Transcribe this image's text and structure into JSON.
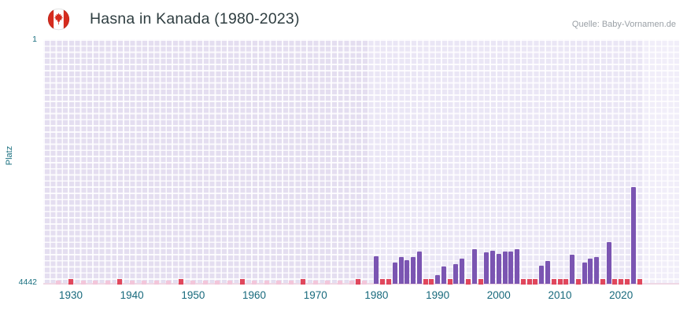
{
  "header": {
    "title": "Hasna in Kanada (1980-2023)",
    "source": "Quelle: Baby-Vornamen.de",
    "flag_icon": "canada-flag"
  },
  "chart_data": {
    "type": "bar",
    "title": "Hasna in Kanada (1980-2023)",
    "xlabel": "",
    "ylabel": "Platz",
    "grid": true,
    "legend": false,
    "y_axis": {
      "min": 1,
      "max": 4442,
      "top_label": "1",
      "bottom_label": "4442",
      "inverted": true,
      "note": "rank axis: 1 = best at top, 4442 at bottom; bars rise from bottom, taller bar = better rank"
    },
    "x_axis": {
      "domain": [
        1926,
        2030
      ],
      "ticks": [
        1930,
        1940,
        1950,
        1960,
        1970,
        1980,
        1990,
        2000,
        2010,
        2020
      ]
    },
    "regions": [
      {
        "name": "pre-data",
        "from": 1926,
        "to": 1979,
        "color": "#e4def0"
      },
      {
        "name": "data-era",
        "from": 1979,
        "to": 2024,
        "color": "#eae6f5"
      },
      {
        "name": "post-data",
        "from": 2024,
        "to": 2030,
        "color": "#f1eef9"
      }
    ],
    "series": [
      {
        "year": 1980,
        "rank": 3940
      },
      {
        "year": 1983,
        "rank": 4060
      },
      {
        "year": 1984,
        "rank": 3950
      },
      {
        "year": 1985,
        "rank": 4010
      },
      {
        "year": 1986,
        "rank": 3950
      },
      {
        "year": 1987,
        "rank": 3860
      },
      {
        "year": 1990,
        "rank": 4290
      },
      {
        "year": 1991,
        "rank": 4130
      },
      {
        "year": 1993,
        "rank": 4090
      },
      {
        "year": 1994,
        "rank": 3990
      },
      {
        "year": 1996,
        "rank": 3820
      },
      {
        "year": 1998,
        "rank": 3870
      },
      {
        "year": 1999,
        "rank": 3840
      },
      {
        "year": 2000,
        "rank": 3900
      },
      {
        "year": 2001,
        "rank": 3860
      },
      {
        "year": 2002,
        "rank": 3850
      },
      {
        "year": 2003,
        "rank": 3820
      },
      {
        "year": 2007,
        "rank": 4110
      },
      {
        "year": 2008,
        "rank": 4030
      },
      {
        "year": 2012,
        "rank": 3920
      },
      {
        "year": 2014,
        "rank": 4060
      },
      {
        "year": 2015,
        "rank": 3990
      },
      {
        "year": 2016,
        "rank": 3960
      },
      {
        "year": 2018,
        "rank": 3690
      },
      {
        "year": 2022,
        "rank": 2690
      }
    ],
    "unranked_marker_years": [
      1930,
      1938,
      1948,
      1958,
      1968,
      1977,
      1981,
      1982,
      1988,
      1989,
      1992,
      1995,
      1997,
      2004,
      2005,
      2006,
      2009,
      2010,
      2011,
      2013,
      2017,
      2019,
      2020,
      2021,
      2023
    ],
    "gap_marker_years": [
      1928,
      1932,
      1934,
      1936,
      1940,
      1942,
      1944,
      1946,
      1950,
      1952,
      1954,
      1956,
      1960,
      1962,
      1964,
      1966,
      1970,
      1972,
      1974,
      1976,
      1978
    ],
    "colors": {
      "bar": "#7b55b2",
      "unranked_marker": "#e0475c",
      "gap_marker": "#f3c6da",
      "axis_text": "#1a7080",
      "x_tick_text": "#17697c",
      "title_text": "#2f3e41",
      "source_text": "#9aa0a6",
      "plot_background": "#eae6f5",
      "flag_red": "#d52b1e"
    }
  }
}
